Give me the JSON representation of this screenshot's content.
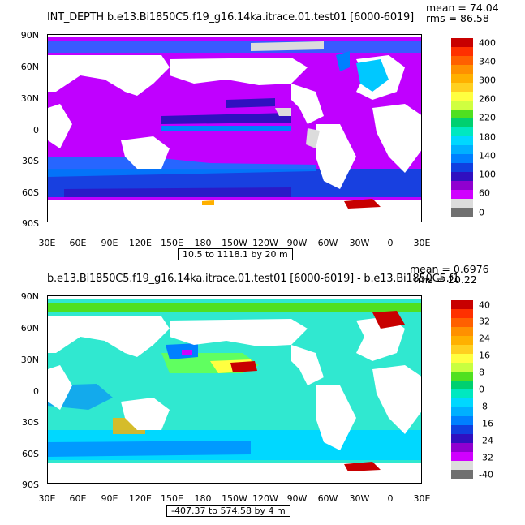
{
  "panels": [
    {
      "title": "INT_DEPTH  b.e13.Bi1850C5.f19_g16.14ka.itrace.01.test01  [6000-6019]",
      "stat_line1": "mean = 74.04",
      "stat_line2": "rms = 86.58",
      "range_text": "10.5 to 1118.1 by 20 m",
      "lat_labels": [
        "90N",
        "60N",
        "30N",
        "0",
        "30S",
        "60S",
        "90S"
      ],
      "lon_labels": [
        "30E",
        "60E",
        "90E",
        "120E",
        "150E",
        "180",
        "150W",
        "120W",
        "90W",
        "60W",
        "30W",
        "0",
        "30E"
      ],
      "colorbar": {
        "labels": [
          "400",
          "340",
          "300",
          "260",
          "220",
          "180",
          "140",
          "100",
          "60",
          "0"
        ],
        "colors": [
          "#c80000",
          "#ff3000",
          "#ff6000",
          "#ff9000",
          "#ffb000",
          "#ffd020",
          "#ffff40",
          "#d0ff40",
          "#50e020",
          "#00d070",
          "#00e8c0",
          "#00d8ff",
          "#00b0ff",
          "#0080ff",
          "#1040e0",
          "#3010c0",
          "#9000d0",
          "#d000ff",
          "#dcdcdc",
          "#707070"
        ]
      },
      "field": {
        "ocean": "#c000ff",
        "band": "#1840e0",
        "accent": "#00c8ff",
        "hot": "#c80000"
      }
    },
    {
      "title": "b.e13.Bi1850C5.f19_g16.14ka.itrace.01.test01  [6000-6019]  - b.e13.Bi1850C5.f1",
      "stat_line1": "mean = 0.6976",
      "stat_line2": "rms = 20.22",
      "range_text": "-407.37 to 574.58 by 4 m",
      "lat_labels": [
        "90N",
        "60N",
        "30N",
        "0",
        "30S",
        "60S",
        "90S"
      ],
      "lon_labels": [
        "30E",
        "60E",
        "90E",
        "120E",
        "150E",
        "180",
        "150W",
        "120W",
        "90W",
        "60W",
        "30W",
        "0",
        "30E"
      ],
      "colorbar": {
        "labels": [
          "40",
          "32",
          "24",
          "16",
          "8",
          "0",
          "-8",
          "-16",
          "-24",
          "-32",
          "-40"
        ],
        "colors": [
          "#c80000",
          "#ff3000",
          "#ff6000",
          "#ff9000",
          "#ffb000",
          "#ffd020",
          "#ffff40",
          "#c8ff40",
          "#50e020",
          "#00d070",
          "#00e8c0",
          "#00d8ff",
          "#00b0ff",
          "#0080ff",
          "#1040e0",
          "#3010c0",
          "#9000d0",
          "#d000ff",
          "#dcdcdc",
          "#707070"
        ]
      },
      "field": {
        "ocean": "#30e8d0",
        "band": "#00c0ff",
        "accent": "#60ff60",
        "hot": "#c80000"
      }
    }
  ]
}
